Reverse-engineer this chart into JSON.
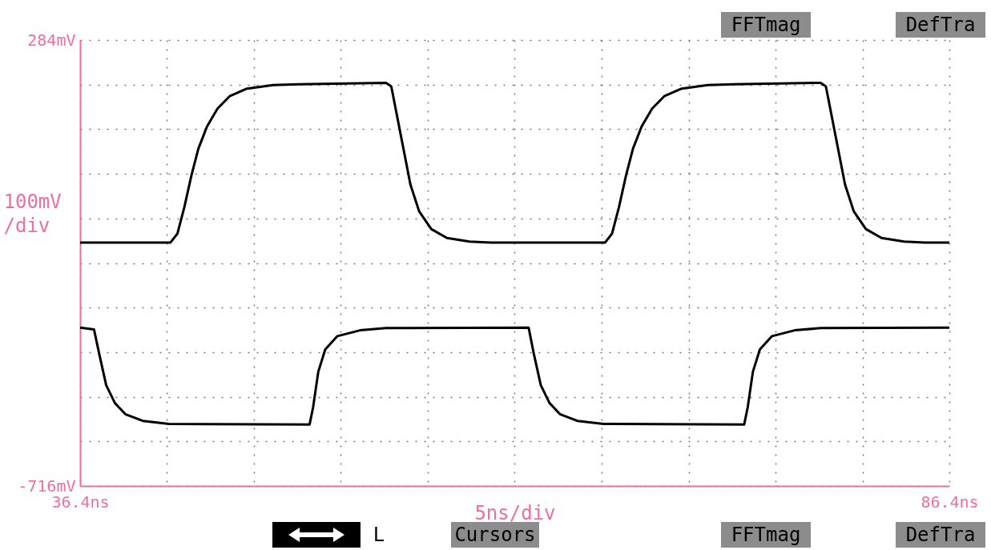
{
  "chart_data": {
    "type": "line",
    "xlabel": "5ns/div",
    "ylabel": "100mV /div",
    "annotations": [
      "FFTmag",
      "DefTra",
      "L",
      "Cursors",
      "FFTmag",
      "DefTra"
    ],
    "xlim": [
      36.4,
      86.4
    ],
    "ylim": [
      -716,
      284
    ],
    "xticks": [
      {
        "value": 36.4,
        "label": "36.4ns"
      },
      {
        "value": 41.4,
        "label": null
      },
      {
        "value": 46.4,
        "label": null
      },
      {
        "value": 51.4,
        "label": null
      },
      {
        "value": 56.4,
        "label": null
      },
      {
        "value": 61.4,
        "label": null
      },
      {
        "value": 66.4,
        "label": null
      },
      {
        "value": 71.4,
        "label": null
      },
      {
        "value": 76.4,
        "label": null
      },
      {
        "value": 81.4,
        "label": null
      },
      {
        "value": 86.4,
        "label": "86.4ns"
      }
    ],
    "yticks": [
      {
        "value": -716,
        "label": "-716mV"
      },
      {
        "value": -616,
        "label": null
      },
      {
        "value": -516,
        "label": null
      },
      {
        "value": -416,
        "label": null
      },
      {
        "value": -316,
        "label": null
      },
      {
        "value": -216,
        "label": null
      },
      {
        "value": -116,
        "label": null
      },
      {
        "value": -16,
        "label": null
      },
      {
        "value": 84,
        "label": null
      },
      {
        "value": 184,
        "label": null
      },
      {
        "value": 284,
        "label": "284mV"
      }
    ],
    "grid": true,
    "series": [
      {
        "color": "#000000",
        "x": [
          36.4,
          41.6,
          42.0,
          42.4,
          42.8,
          43.2,
          43.7,
          44.3,
          45.0,
          46.0,
          47.5,
          49.0,
          54.0,
          54.3,
          54.6,
          55.0,
          55.4,
          55.9,
          56.6,
          57.5,
          58.8,
          60.0,
          66.6,
          67.0,
          67.4,
          67.8,
          68.2,
          68.7,
          69.3,
          70.0,
          71.0,
          72.5,
          74.0,
          79.0,
          79.3,
          79.6,
          80.0,
          80.4,
          80.9,
          81.6,
          82.5,
          83.8,
          85.0,
          86.4
        ],
        "values": [
          -170,
          -170,
          -150,
          -90,
          -20,
          40,
          90,
          130,
          158,
          175,
          183,
          185,
          188,
          180,
          120,
          40,
          -40,
          -100,
          -140,
          -160,
          -168,
          -170,
          -170,
          -150,
          -90,
          -20,
          40,
          90,
          130,
          158,
          175,
          183,
          185,
          188,
          180,
          120,
          40,
          -40,
          -100,
          -140,
          -160,
          -168,
          -170,
          -170
        ]
      },
      {
        "color": "#000000",
        "x": [
          36.4,
          37.2,
          37.5,
          37.9,
          38.4,
          39.0,
          40.0,
          41.5,
          49.6,
          49.8,
          50.1,
          50.5,
          51.2,
          52.5,
          54.0,
          62.2,
          62.5,
          62.9,
          63.4,
          64.0,
          65.0,
          66.5,
          74.6,
          74.8,
          75.1,
          75.5,
          76.2,
          77.5,
          79.0,
          86.4
        ],
        "values": [
          -361,
          -365,
          -420,
          -490,
          -530,
          -555,
          -570,
          -577,
          -578,
          -540,
          -460,
          -410,
          -380,
          -367,
          -362,
          -361,
          -420,
          -490,
          -530,
          -555,
          -570,
          -577,
          -578,
          -540,
          -460,
          -410,
          -380,
          -367,
          -362,
          -361
        ]
      }
    ]
  }
}
